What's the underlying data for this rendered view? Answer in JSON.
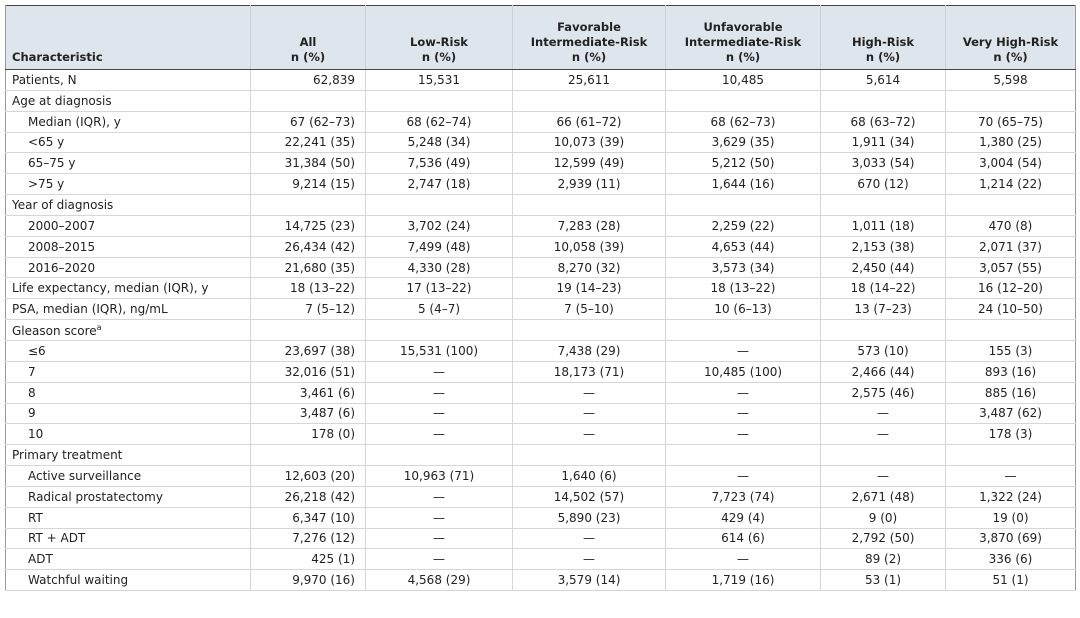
{
  "table": {
    "columns": [
      [
        "Characteristic"
      ],
      [
        "All",
        "n (%)"
      ],
      [
        "Low-Risk",
        "n (%)"
      ],
      [
        "Favorable",
        "Intermediate-Risk",
        "n (%)"
      ],
      [
        "Unfavorable",
        "Intermediate-Risk",
        "n (%)"
      ],
      [
        "High-Risk",
        "n (%)"
      ],
      [
        "Very High-Risk",
        "n (%)"
      ]
    ],
    "body": [
      {
        "label": "Patients, N",
        "values": [
          "62,839",
          "15,531",
          "25,611",
          "10,485",
          "5,614",
          "5,598"
        ]
      },
      {
        "label": "Age at diagnosis",
        "rows": [
          {
            "label": "Median (IQR), y",
            "values": [
              "67 (62–73)",
              "68 (62–74)",
              "66 (61–72)",
              "68 (62–73)",
              "68 (63–72)",
              "70 (65–75)"
            ]
          },
          {
            "label": "<65 y",
            "values": [
              "22,241 (35)",
              "5,248 (34)",
              "10,073 (39)",
              "3,629 (35)",
              "1,911 (34)",
              "1,380 (25)"
            ]
          },
          {
            "label": "65–75 y",
            "values": [
              "31,384 (50)",
              "7,536 (49)",
              "12,599 (49)",
              "5,212 (50)",
              "3,033 (54)",
              "3,004 (54)"
            ]
          },
          {
            "label": ">75 y",
            "values": [
              "9,214 (15)",
              "2,747 (18)",
              "2,939 (11)",
              "1,644 (16)",
              "670 (12)",
              "1,214 (22)"
            ]
          }
        ]
      },
      {
        "label": "Year of diagnosis",
        "rows": [
          {
            "label": "2000–2007",
            "values": [
              "14,725 (23)",
              "3,702 (24)",
              "7,283 (28)",
              "2,259 (22)",
              "1,011 (18)",
              "470 (8)"
            ]
          },
          {
            "label": "2008–2015",
            "values": [
              "26,434 (42)",
              "7,499 (48)",
              "10,058 (39)",
              "4,653 (44)",
              "2,153 (38)",
              "2,071 (37)"
            ]
          },
          {
            "label": "2016–2020",
            "values": [
              "21,680 (35)",
              "4,330 (28)",
              "8,270 (32)",
              "3,573 (34)",
              "2,450 (44)",
              "3,057 (55)"
            ]
          }
        ]
      },
      {
        "label": "Life expectancy, median (IQR), y",
        "values": [
          "18 (13–22)",
          "17 (13–22)",
          "19 (14–23)",
          "18 (13–22)",
          "18 (14–22)",
          "16 (12–20)"
        ]
      },
      {
        "label": "PSA, median (IQR), ng/mL",
        "values": [
          "7 (5–12)",
          "5 (4–7)",
          "7 (5–10)",
          "10 (6–13)",
          "13 (7–23)",
          "24 (10–50)"
        ]
      },
      {
        "label": "Gleason score",
        "note": "a",
        "rows": [
          {
            "label": "≤6",
            "values": [
              "23,697 (38)",
              "15,531 (100)",
              "7,438 (29)",
              "—",
              "573 (10)",
              "155 (3)"
            ]
          },
          {
            "label": "7",
            "values": [
              "32,016 (51)",
              "—",
              "18,173 (71)",
              "10,485 (100)",
              "2,466 (44)",
              "893 (16)"
            ]
          },
          {
            "label": "8",
            "values": [
              "3,461 (6)",
              "—",
              "—",
              "—",
              "2,575 (46)",
              "885 (16)"
            ]
          },
          {
            "label": "9",
            "values": [
              "3,487 (6)",
              "—",
              "—",
              "—",
              "—",
              "3,487 (62)"
            ]
          },
          {
            "label": "10",
            "values": [
              "178 (0)",
              "—",
              "—",
              "—",
              "—",
              "178 (3)"
            ]
          }
        ]
      },
      {
        "label": "Primary treatment",
        "rows": [
          {
            "label": "Active surveillance",
            "values": [
              "12,603 (20)",
              "10,963 (71)",
              "1,640 (6)",
              "—",
              "—",
              "—"
            ]
          },
          {
            "label": "Radical prostatectomy",
            "values": [
              "26,218 (42)",
              "—",
              "14,502 (57)",
              "7,723 (74)",
              "2,671 (48)",
              "1,322 (24)"
            ]
          },
          {
            "label": "RT",
            "values": [
              "6,347 (10)",
              "—",
              "5,890 (23)",
              "429 (4)",
              "9 (0)",
              "19 (0)"
            ]
          },
          {
            "label": "RT + ADT",
            "values": [
              "7,276 (12)",
              "—",
              "—",
              "614 (6)",
              "2,792 (50)",
              "3,870 (69)"
            ]
          },
          {
            "label": "ADT",
            "values": [
              "425 (1)",
              "—",
              "—",
              "—",
              "89 (2)",
              "336 (6)"
            ]
          },
          {
            "label": "Watchful waiting",
            "values": [
              "9,970 (16)",
              "4,568 (29)",
              "3,579 (14)",
              "1,719 (16)",
              "53 (1)",
              "51 (1)"
            ]
          }
        ]
      }
    ]
  }
}
